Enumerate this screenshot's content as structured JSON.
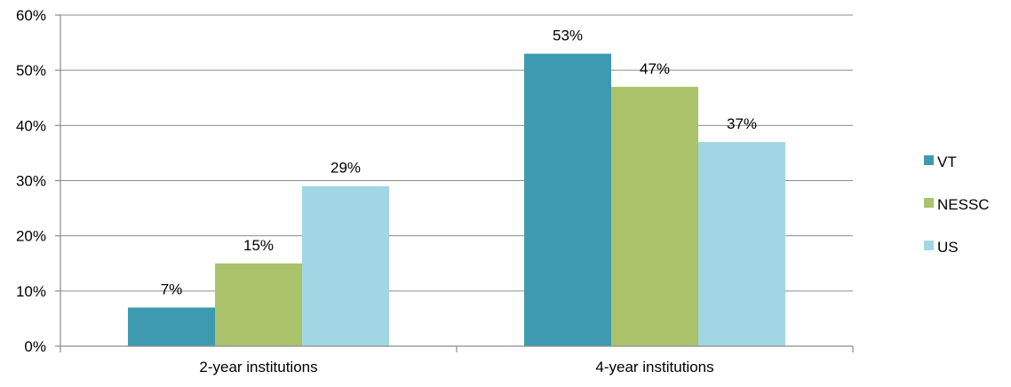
{
  "chart_data": {
    "type": "bar",
    "categories": [
      "2-year institutions",
      "4-year institutions"
    ],
    "series": [
      {
        "name": "VT",
        "values": [
          7,
          53
        ],
        "color": "#3e9ab1"
      },
      {
        "name": "NESSC",
        "values": [
          15,
          47
        ],
        "color": "#aac36b"
      },
      {
        "name": "US",
        "values": [
          29,
          37
        ],
        "color": "#a3d6e4"
      }
    ],
    "value_labels": [
      [
        "7%",
        "53%"
      ],
      [
        "15%",
        "47%"
      ],
      [
        "29%",
        "37%"
      ]
    ],
    "ylim": [
      0,
      60
    ],
    "y_ticks": [
      0,
      10,
      20,
      30,
      40,
      50,
      60
    ],
    "y_tick_labels": [
      "0%",
      "10%",
      "20%",
      "30%",
      "40%",
      "50%",
      "60%"
    ],
    "grid": true,
    "legend": "right",
    "title": "",
    "xlabel": "",
    "ylabel": ""
  }
}
